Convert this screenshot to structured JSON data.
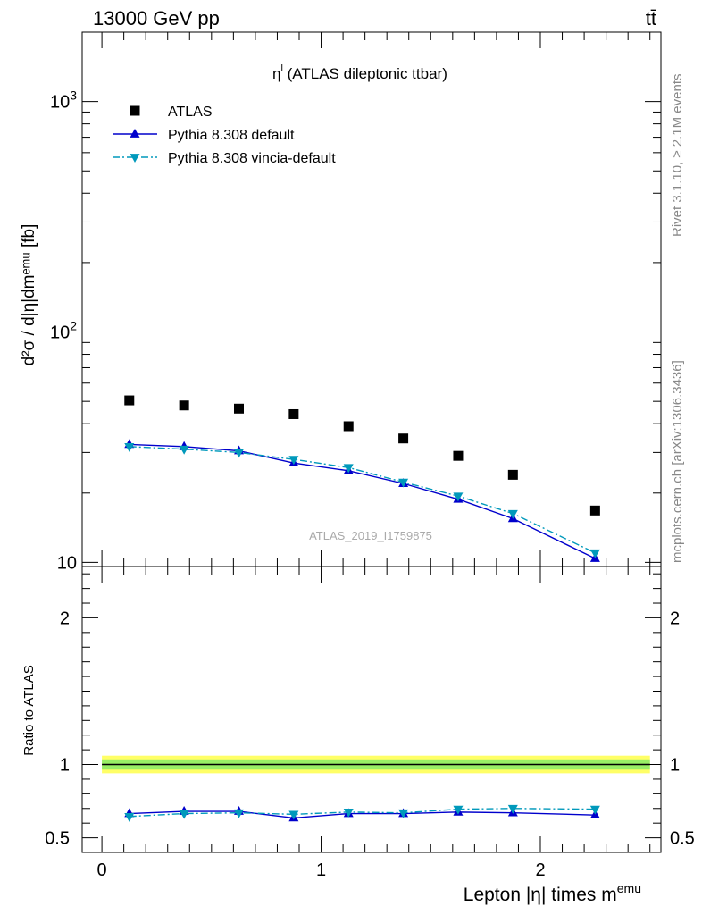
{
  "header": {
    "energy_label": "13000 GeV pp",
    "process_label": "tt̄"
  },
  "side_labels": {
    "rivet": "Rivet 3.1.10, ≥ 2.1M events",
    "source": "mcplots.cern.ch [arXiv:1306.3436]"
  },
  "chart_data": [
    {
      "panel": "main",
      "type": "scatter",
      "title_symbol": "η",
      "title_superscript": "l",
      "title_text": " (ATLAS dileptonic ttbar)",
      "watermark": "ATLAS_2019_I1759875",
      "ylabel": "d²σ / d|η|dmᵉᵐᵘ [fb]",
      "yscale": "log",
      "ylim": [
        9.6,
        2000
      ],
      "xlim": [
        -0.09,
        2.55
      ],
      "ytick_labels": [
        "10",
        "10²",
        "10³"
      ],
      "ytick_values": [
        10,
        100,
        1000
      ],
      "x": [
        0.125,
        0.375,
        0.625,
        0.875,
        1.125,
        1.375,
        1.625,
        1.875,
        2.25
      ],
      "series": [
        {
          "name": "ATLAS",
          "style": "data",
          "marker": "square",
          "color": "#000000",
          "values": [
            50.5,
            48.0,
            46.5,
            44.0,
            39.0,
            34.5,
            29.0,
            24.0,
            16.8
          ]
        },
        {
          "name": "Pythia 8.308 default",
          "style": "solid",
          "marker": "triangle-up",
          "color": "#0000cc",
          "values": [
            32.5,
            31.8,
            30.5,
            27.0,
            25.0,
            22.0,
            18.8,
            15.5,
            10.4
          ]
        },
        {
          "name": "Pythia 8.308 vincia-default",
          "style": "dashdot",
          "marker": "triangle-down",
          "color": "#0099bb",
          "values": [
            31.8,
            31.0,
            30.0,
            28.0,
            25.8,
            22.3,
            19.4,
            16.3,
            11.0
          ]
        }
      ]
    },
    {
      "panel": "ratio",
      "type": "line",
      "ylabel": "Ratio to ATLAS",
      "xlabel": "Lepton |η| times m",
      "xlabel_superscript": "emu",
      "ylim": [
        0.4,
        2.35
      ],
      "xlim": [
        -0.09,
        2.55
      ],
      "xtick_labels": [
        "0",
        "1",
        "2"
      ],
      "xtick_values": [
        0,
        1,
        2
      ],
      "ytick_labels": [
        "0.5",
        "1",
        "2"
      ],
      "ytick_values": [
        0.5,
        1,
        2
      ],
      "band_outer": [
        0.94,
        1.06
      ],
      "band_inner": [
        0.965,
        1.035
      ],
      "band_outer_color": "#ffff66",
      "band_inner_color": "#99ee66",
      "x": [
        0.125,
        0.375,
        0.625,
        0.875,
        1.125,
        1.375,
        1.625,
        1.875,
        2.25
      ],
      "series": [
        {
          "name": "Pythia 8.308 default",
          "marker": "triangle-up",
          "color": "#0000cc",
          "values": [
            0.665,
            0.68,
            0.68,
            0.635,
            0.665,
            0.665,
            0.675,
            0.67,
            0.655
          ]
        },
        {
          "name": "Pythia 8.308 vincia-default",
          "marker": "triangle-down",
          "color": "#0099bb",
          "values": [
            0.645,
            0.665,
            0.67,
            0.66,
            0.675,
            0.67,
            0.695,
            0.7,
            0.695
          ]
        }
      ]
    }
  ]
}
